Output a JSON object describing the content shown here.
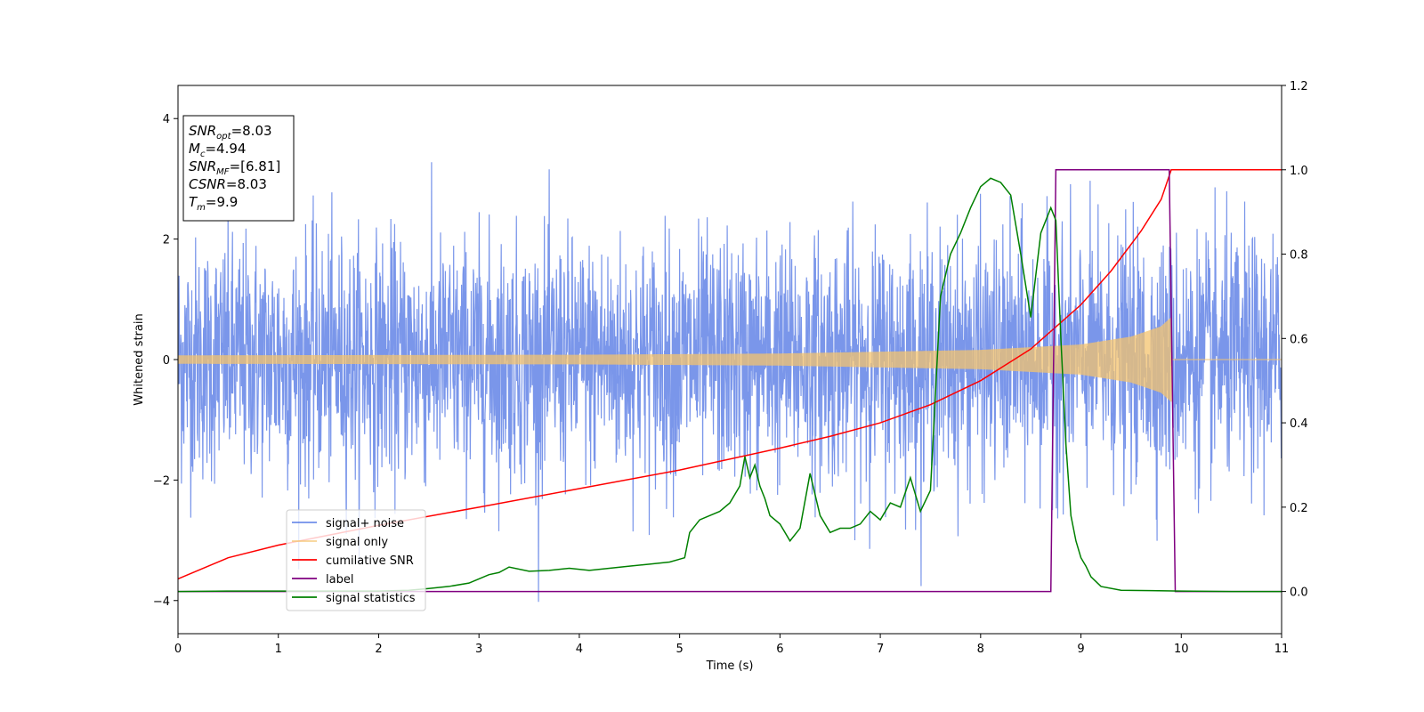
{
  "chart_data": {
    "type": "line",
    "xlabel": "Time (s)",
    "ylabel_left": "Whitened strain",
    "ylabel_right": "",
    "xlim": [
      0,
      11
    ],
    "ylim_left": [
      -4.55,
      4.55
    ],
    "ylim_right": [
      -0.1,
      1.2
    ],
    "x_ticks": [
      0,
      1,
      2,
      3,
      4,
      5,
      6,
      7,
      8,
      9,
      10,
      11
    ],
    "y_ticks_left": [
      -4,
      -2,
      0,
      2,
      4
    ],
    "y_ticks_left_labels": [
      "−4",
      "−2",
      "0",
      "2",
      "4"
    ],
    "y_ticks_right": [
      0.0,
      0.2,
      0.4,
      0.6,
      0.8,
      1.0,
      1.2
    ],
    "y_ticks_right_labels": [
      "0.0",
      "0.2",
      "0.4",
      "0.6",
      "0.8",
      "1.0",
      "1.2"
    ],
    "grid": false,
    "legend_position": "lower-left",
    "info_box": {
      "lines": [
        {
          "main": "SNR",
          "sub": "opt",
          "value": "=8.03"
        },
        {
          "main": "M",
          "sub": "c",
          "value": "=4.94"
        },
        {
          "main": "SNR",
          "sub": "MF",
          "value": "=[6.81]"
        },
        {
          "main": "CSNR",
          "sub": "",
          "value": "=8.03"
        },
        {
          "main": "T",
          "sub": "m",
          "value": "=9.9"
        }
      ]
    },
    "series": [
      {
        "name": "signal+ noise",
        "axis": "left",
        "color": "#4169e1",
        "kind": "noise",
        "noise_sigma": 1.0,
        "noise_max_abs": 4.1,
        "x_range": [
          0,
          11
        ]
      },
      {
        "name": "signal only",
        "axis": "left",
        "color": "#f4c36e",
        "kind": "chirp",
        "x_range": [
          0,
          9.9
        ],
        "amplitude_at": [
          [
            0,
            0.07
          ],
          [
            4,
            0.08
          ],
          [
            6,
            0.1
          ],
          [
            8,
            0.16
          ],
          [
            9,
            0.25
          ],
          [
            9.5,
            0.38
          ],
          [
            9.8,
            0.55
          ],
          [
            9.9,
            0.7
          ]
        ],
        "after_merger_value": 0
      },
      {
        "name": "cumilative SNR",
        "axis": "right",
        "color": "#ff0000",
        "x": [
          0,
          0.5,
          1,
          2,
          3,
          4,
          5,
          6,
          6.5,
          7,
          7.5,
          8,
          8.5,
          9,
          9.3,
          9.6,
          9.8,
          9.9,
          11
        ],
        "y": [
          0.03,
          0.08,
          0.11,
          0.157,
          0.2,
          0.244,
          0.288,
          0.34,
          0.368,
          0.4,
          0.443,
          0.5,
          0.575,
          0.68,
          0.76,
          0.855,
          0.93,
          1.0,
          1.0
        ]
      },
      {
        "name": "label",
        "axis": "right",
        "color": "#800080",
        "x": [
          0,
          8.7,
          8.75,
          9.88,
          9.94,
          11
        ],
        "y": [
          0,
          0,
          1,
          1,
          0,
          0
        ]
      },
      {
        "name": "signal statistics",
        "axis": "right",
        "color": "#008000",
        "x": [
          0,
          0.5,
          1,
          1.5,
          2,
          2.3,
          2.5,
          2.7,
          2.9,
          3.0,
          3.1,
          3.2,
          3.3,
          3.5,
          3.7,
          3.9,
          4.1,
          4.3,
          4.5,
          4.7,
          4.9,
          5.05,
          5.1,
          5.2,
          5.3,
          5.4,
          5.5,
          5.6,
          5.65,
          5.7,
          5.75,
          5.8,
          5.85,
          5.9,
          6.0,
          6.1,
          6.2,
          6.3,
          6.4,
          6.5,
          6.6,
          6.7,
          6.8,
          6.9,
          7.0,
          7.1,
          7.2,
          7.3,
          7.4,
          7.5,
          7.6,
          7.7,
          7.8,
          7.9,
          8.0,
          8.1,
          8.2,
          8.3,
          8.4,
          8.5,
          8.6,
          8.7,
          8.75,
          8.8,
          8.85,
          8.9,
          8.95,
          9.0,
          9.05,
          9.1,
          9.2,
          9.4,
          9.7,
          10,
          10.5,
          11
        ],
        "y": [
          0.0,
          0.001,
          0.001,
          0.001,
          0.001,
          0.003,
          0.007,
          0.012,
          0.02,
          0.03,
          0.04,
          0.045,
          0.058,
          0.048,
          0.05,
          0.055,
          0.05,
          0.055,
          0.06,
          0.065,
          0.07,
          0.08,
          0.14,
          0.17,
          0.18,
          0.19,
          0.21,
          0.25,
          0.32,
          0.27,
          0.3,
          0.25,
          0.22,
          0.18,
          0.16,
          0.12,
          0.15,
          0.28,
          0.18,
          0.14,
          0.15,
          0.15,
          0.16,
          0.19,
          0.17,
          0.21,
          0.2,
          0.27,
          0.19,
          0.24,
          0.7,
          0.8,
          0.85,
          0.91,
          0.96,
          0.98,
          0.97,
          0.94,
          0.8,
          0.65,
          0.85,
          0.91,
          0.88,
          0.6,
          0.35,
          0.18,
          0.12,
          0.08,
          0.06,
          0.035,
          0.012,
          0.003,
          0.002,
          0.001,
          0.0,
          0.0
        ]
      }
    ]
  }
}
